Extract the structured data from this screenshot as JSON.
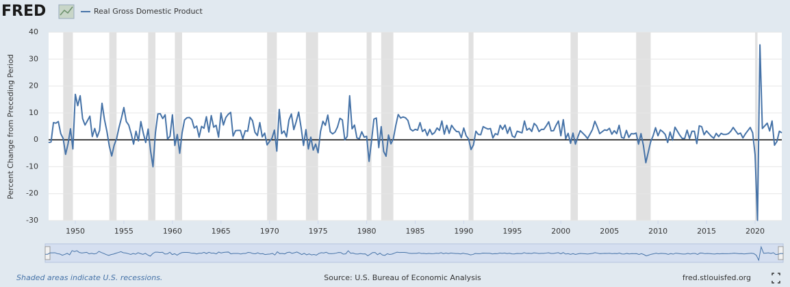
{
  "chart_data": {
    "type": "line",
    "logo": "FRED",
    "y_label": "Percent Change from Preceding Period",
    "note": "Shaded areas indicate U.S. recessions.",
    "source": "Source: U.S. Bureau of Economic Analysis",
    "site": "fred.stlouisfed.org",
    "xlim": [
      1947.25,
      2022.75
    ],
    "xticks": [
      1950,
      1955,
      1960,
      1965,
      1970,
      1975,
      1980,
      1985,
      1990,
      1995,
      2000,
      2005,
      2010,
      2015,
      2020
    ],
    "ylim": [
      -30,
      40
    ],
    "yticks": [
      -30,
      -20,
      -10,
      0,
      10,
      20,
      30,
      40
    ],
    "grid": true,
    "recession_color": "#e1e1e1",
    "recessions": [
      [
        1948.75,
        1949.75
      ],
      [
        1953.5,
        1954.25
      ],
      [
        1957.5,
        1958.25
      ],
      [
        1960.25,
        1961.0
      ],
      [
        1969.75,
        1970.75
      ],
      [
        1973.75,
        1975.0
      ],
      [
        1980.0,
        1980.5
      ],
      [
        1981.5,
        1982.75
      ],
      [
        1990.5,
        1991.0
      ],
      [
        2001.0,
        2001.75
      ],
      [
        2007.75,
        2009.25
      ],
      [
        2020.0,
        2020.25
      ]
    ],
    "x": [
      1947.25,
      1947.5,
      1947.75,
      1948,
      1948.25,
      1948.5,
      1948.75,
      1949,
      1949.25,
      1949.5,
      1949.75,
      1950,
      1950.25,
      1950.5,
      1950.75,
      1951,
      1951.25,
      1951.5,
      1951.75,
      1952,
      1952.25,
      1952.5,
      1952.75,
      1953,
      1953.25,
      1953.5,
      1953.75,
      1954,
      1954.25,
      1954.5,
      1954.75,
      1955,
      1955.25,
      1955.5,
      1955.75,
      1956,
      1956.25,
      1956.5,
      1956.75,
      1957,
      1957.25,
      1957.5,
      1957.75,
      1958,
      1958.25,
      1958.5,
      1958.75,
      1959,
      1959.25,
      1959.5,
      1959.75,
      1960,
      1960.25,
      1960.5,
      1960.75,
      1961,
      1961.25,
      1961.5,
      1961.75,
      1962,
      1962.25,
      1962.5,
      1962.75,
      1963,
      1963.25,
      1963.5,
      1963.75,
      1964,
      1964.25,
      1964.5,
      1964.75,
      1965,
      1965.25,
      1965.5,
      1965.75,
      1966,
      1966.25,
      1966.5,
      1966.75,
      1967,
      1967.25,
      1967.5,
      1967.75,
      1968,
      1968.25,
      1968.5,
      1968.75,
      1969,
      1969.25,
      1969.5,
      1969.75,
      1970,
      1970.25,
      1970.5,
      1970.75,
      1971,
      1971.25,
      1971.5,
      1971.75,
      1972,
      1972.25,
      1972.5,
      1972.75,
      1973,
      1973.25,
      1973.5,
      1973.75,
      1974,
      1974.25,
      1974.5,
      1974.75,
      1975,
      1975.25,
      1975.5,
      1975.75,
      1976,
      1976.25,
      1976.5,
      1976.75,
      1977,
      1977.25,
      1977.5,
      1977.75,
      1978,
      1978.25,
      1978.5,
      1978.75,
      1979,
      1979.25,
      1979.5,
      1979.75,
      1980,
      1980.25,
      1980.5,
      1980.75,
      1981,
      1981.25,
      1981.5,
      1981.75,
      1982,
      1982.25,
      1982.5,
      1982.75,
      1983,
      1983.25,
      1983.5,
      1983.75,
      1984,
      1984.25,
      1984.5,
      1984.75,
      1985,
      1985.25,
      1985.5,
      1985.75,
      1986,
      1986.25,
      1986.5,
      1986.75,
      1987,
      1987.25,
      1987.5,
      1987.75,
      1988,
      1988.25,
      1988.5,
      1988.75,
      1989,
      1989.25,
      1989.5,
      1989.75,
      1990,
      1990.25,
      1990.5,
      1990.75,
      1991,
      1991.25,
      1991.5,
      1991.75,
      1992,
      1992.25,
      1992.5,
      1992.75,
      1993,
      1993.25,
      1993.5,
      1993.75,
      1994,
      1994.25,
      1994.5,
      1994.75,
      1995,
      1995.25,
      1995.5,
      1995.75,
      1996,
      1996.25,
      1996.5,
      1996.75,
      1997,
      1997.25,
      1997.5,
      1997.75,
      1998,
      1998.25,
      1998.5,
      1998.75,
      1999,
      1999.25,
      1999.5,
      1999.75,
      2000,
      2000.25,
      2000.5,
      2000.75,
      2001,
      2001.25,
      2001.5,
      2001.75,
      2002,
      2002.25,
      2002.5,
      2002.75,
      2003,
      2003.25,
      2003.5,
      2003.75,
      2004,
      2004.25,
      2004.5,
      2004.75,
      2005,
      2005.25,
      2005.5,
      2005.75,
      2006,
      2006.25,
      2006.5,
      2006.75,
      2007,
      2007.25,
      2007.5,
      2007.75,
      2008,
      2008.25,
      2008.5,
      2008.75,
      2009,
      2009.25,
      2009.5,
      2009.75,
      2010,
      2010.25,
      2010.5,
      2010.75,
      2011,
      2011.25,
      2011.5,
      2011.75,
      2012,
      2012.25,
      2012.5,
      2012.75,
      2013,
      2013.25,
      2013.5,
      2013.75,
      2014,
      2014.25,
      2014.5,
      2014.75,
      2015,
      2015.25,
      2015.5,
      2015.75,
      2016,
      2016.25,
      2016.5,
      2016.75,
      2017,
      2017.25,
      2017.5,
      2017.75,
      2018,
      2018.25,
      2018.5,
      2018.75,
      2019,
      2019.25,
      2019.5,
      2019.75,
      2020,
      2020.25,
      2020.5,
      2020.75,
      2021,
      2021.25,
      2021.5,
      2021.75,
      2022,
      2022.25,
      2022.5,
      2022.75
    ],
    "series": [
      {
        "name": "Real Gross Domestic Product",
        "color": "#4572a7",
        "values": [
          -1.0,
          -0.8,
          6.4,
          6.2,
          6.8,
          2.3,
          0.5,
          -5.4,
          -1.5,
          4.1,
          -3.4,
          16.9,
          12.7,
          16.4,
          7.9,
          5.5,
          7.1,
          8.8,
          1.2,
          4.2,
          1.0,
          3.5,
          13.6,
          7.6,
          3.2,
          -2.3,
          -6.0,
          -2.0,
          0.4,
          4.6,
          8.1,
          12.0,
          6.8,
          5.5,
          2.3,
          -1.6,
          3.2,
          -0.4,
          6.8,
          2.5,
          -1.0,
          4.0,
          -4.1,
          -10.0,
          2.6,
          9.6,
          9.7,
          7.9,
          9.3,
          0.3,
          1.3,
          9.3,
          -2.1,
          2.0,
          -5.0,
          2.7,
          7.4,
          8.2,
          8.3,
          7.5,
          4.4,
          5.1,
          1.0,
          5.0,
          4.3,
          8.6,
          2.9,
          9.0,
          4.7,
          5.4,
          1.0,
          10.0,
          5.5,
          8.3,
          9.5,
          10.2,
          1.4,
          3.4,
          3.5,
          3.5,
          0.4,
          3.4,
          3.2,
          8.4,
          7.1,
          2.8,
          1.6,
          6.4,
          1.1,
          2.5,
          -1.9,
          -0.6,
          0.6,
          3.6,
          -4.2,
          11.3,
          2.3,
          3.3,
          1.1,
          7.4,
          9.6,
          3.8,
          6.8,
          10.3,
          4.6,
          -2.1,
          3.8,
          -3.4,
          1.0,
          -3.8,
          -1.6,
          -4.8,
          3.1,
          6.9,
          5.4,
          9.2,
          3.0,
          2.2,
          2.9,
          4.8,
          8.0,
          7.4,
          0.0,
          1.3,
          16.4,
          4.1,
          5.5,
          0.7,
          0.4,
          3.0,
          1.0,
          1.3,
          -8.0,
          -0.5,
          7.7,
          8.1,
          -2.9,
          4.9,
          -4.3,
          -6.1,
          1.8,
          -1.5,
          0.4,
          5.3,
          9.4,
          8.1,
          8.5,
          8.2,
          7.2,
          4.0,
          3.3,
          3.9,
          3.6,
          6.4,
          3.1,
          3.9,
          1.6,
          3.9,
          2.0,
          2.7,
          4.4,
          3.5,
          7.0,
          2.1,
          5.4,
          2.4,
          5.4,
          4.1,
          3.1,
          3.0,
          0.8,
          4.4,
          1.5,
          0.3,
          -3.6,
          -1.9,
          3.2,
          2.0,
          1.9,
          4.9,
          4.4,
          4.0,
          4.2,
          0.7,
          2.3,
          1.9,
          5.4,
          3.9,
          5.5,
          2.4,
          4.7,
          1.4,
          0.9,
          3.2,
          2.9,
          2.6,
          7.0,
          3.6,
          4.3,
          3.1,
          6.1,
          5.2,
          3.1,
          3.9,
          3.9,
          5.2,
          6.7,
          3.3,
          3.4,
          5.4,
          7.0,
          1.5,
          7.5,
          0.4,
          2.4,
          -1.3,
          2.5,
          -1.6,
          1.1,
          3.4,
          2.5,
          1.6,
          0.5,
          2.1,
          3.8,
          6.9,
          4.8,
          2.3,
          3.0,
          3.7,
          3.5,
          4.3,
          2.1,
          3.4,
          2.3,
          5.4,
          0.9,
          0.6,
          3.5,
          0.9,
          2.3,
          2.2,
          2.5,
          -1.6,
          2.3,
          -2.1,
          -8.5,
          -4.6,
          -0.7,
          1.5,
          4.5,
          1.5,
          3.7,
          3.0,
          2.0,
          -1.0,
          2.9,
          -0.1,
          4.7,
          3.2,
          1.7,
          0.5,
          0.5,
          3.6,
          0.5,
          3.2,
          3.2,
          -1.4,
          5.2,
          4.9,
          1.9,
          3.3,
          2.3,
          1.3,
          0.6,
          2.4,
          1.2,
          2.4,
          2.0,
          2.0,
          2.3,
          3.2,
          4.6,
          3.3,
          2.1,
          2.5,
          0.7,
          2.2,
          3.4,
          4.6,
          2.6,
          -5.5,
          -29.9,
          35.3,
          4.2,
          5.2,
          6.2,
          3.3,
          7.0,
          -2.0,
          -0.6,
          3.2,
          2.6
        ]
      }
    ]
  }
}
